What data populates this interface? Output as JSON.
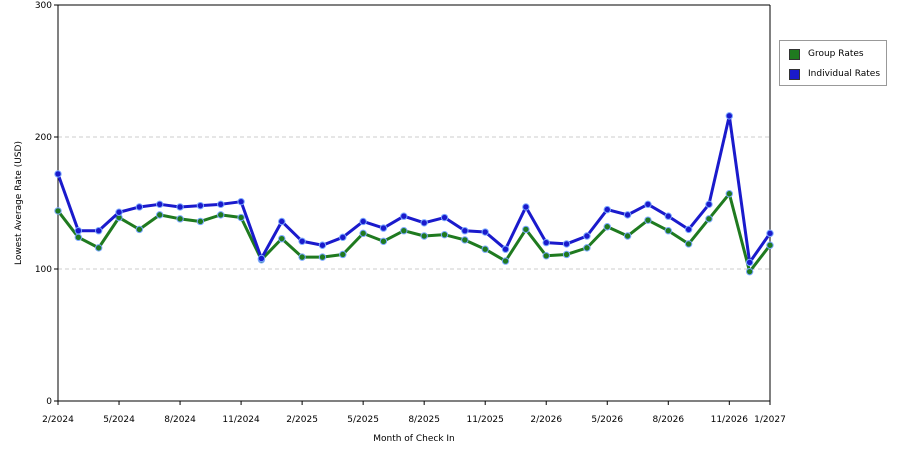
{
  "chart_data": {
    "type": "line",
    "xlabel": "Month of Check In",
    "ylabel": "Lowest Average Rate (USD)",
    "ylim": [
      0,
      300
    ],
    "yticks": [
      0,
      100,
      200,
      300
    ],
    "grid": "horizontal dashed",
    "legend_position": "right",
    "x": [
      "2/2024",
      "3/2024",
      "4/2024",
      "5/2024",
      "6/2024",
      "7/2024",
      "8/2024",
      "9/2024",
      "10/2024",
      "11/2024",
      "12/2024",
      "1/2025",
      "2/2025",
      "3/2025",
      "4/2025",
      "5/2025",
      "6/2025",
      "7/2025",
      "8/2025",
      "9/2025",
      "10/2025",
      "11/2025",
      "12/2025",
      "1/2026",
      "2/2026",
      "3/2026",
      "4/2026",
      "5/2026",
      "6/2026",
      "7/2026",
      "8/2026",
      "9/2026",
      "10/2026",
      "11/2026",
      "12/2026",
      "1/2027"
    ],
    "x_tick_labels": [
      "2/2024",
      "5/2024",
      "8/2024",
      "11/2024",
      "2/2025",
      "5/2025",
      "8/2025",
      "11/2025",
      "2/2026",
      "5/2026",
      "8/2026",
      "11/2026",
      "1/2027"
    ],
    "series": [
      {
        "name": "Group Rates",
        "color": "#1f7a1f",
        "values": [
          144,
          124,
          116,
          139,
          130,
          141,
          138,
          136,
          141,
          139,
          107,
          123,
          109,
          109,
          111,
          127,
          121,
          129,
          125,
          126,
          122,
          115,
          106,
          130,
          110,
          111,
          116,
          132,
          125,
          137,
          129,
          119,
          138,
          157,
          98,
          118
        ]
      },
      {
        "name": "Individual Rates",
        "color": "#1a1acc",
        "values": [
          172,
          129,
          129,
          143,
          147,
          149,
          147,
          148,
          149,
          151,
          108,
          136,
          121,
          118,
          124,
          136,
          131,
          140,
          135,
          139,
          129,
          128,
          115,
          147,
          120,
          119,
          125,
          145,
          141,
          149,
          140,
          130,
          149,
          216,
          105,
          127
        ]
      }
    ]
  }
}
